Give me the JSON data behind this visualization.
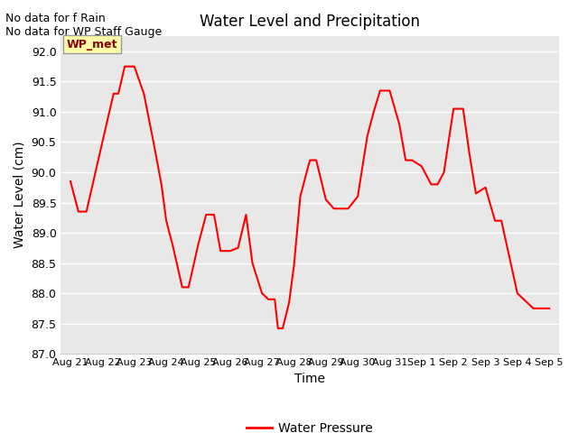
{
  "title": "Water Level and Precipitation",
  "xlabel": "Time",
  "ylabel": "Water Level (cm)",
  "legend_label": "Water Pressure",
  "line_color": "red",
  "background_color": "#e8e8e8",
  "fig_background": "#ffffff",
  "ylim": [
    87.0,
    92.25
  ],
  "yticks": [
    87.0,
    87.5,
    88.0,
    88.5,
    89.0,
    89.5,
    90.0,
    90.5,
    91.0,
    91.5,
    92.0
  ],
  "xtick_labels": [
    "Aug 21",
    "Aug 22",
    "Aug 23",
    "Aug 24",
    "Aug 25",
    "Aug 26",
    "Aug 27",
    "Aug 28",
    "Aug 29",
    "Aug 30",
    "Aug 31",
    "Sep 1",
    "Sep 2",
    "Sep 3",
    "Sep 4",
    "Sep 5"
  ],
  "annotation_text": "No data for f Rain\nNo data for WP Staff Gauge",
  "wp_met_label": "WP_met",
  "x": [
    0,
    0.25,
    0.5,
    1.0,
    1.35,
    1.5,
    1.7,
    2.0,
    2.3,
    2.6,
    2.85,
    3.0,
    3.2,
    3.5,
    3.7,
    4.0,
    4.25,
    4.5,
    4.7,
    5.0,
    5.25,
    5.5,
    5.7,
    6.0,
    6.2,
    6.4,
    6.5,
    6.65,
    6.85,
    7.0,
    7.2,
    7.5,
    7.7,
    8.0,
    8.25,
    8.5,
    8.7,
    9.0,
    9.3,
    9.5,
    9.7,
    10.0,
    10.3,
    10.5,
    10.7,
    11.0,
    11.3,
    11.5,
    11.7,
    12.0,
    12.3,
    12.5,
    12.7,
    13.0,
    13.3,
    13.5,
    14.0,
    14.3,
    14.5,
    15.0
  ],
  "y": [
    89.85,
    89.35,
    89.35,
    90.5,
    91.3,
    91.3,
    91.75,
    91.75,
    91.3,
    90.5,
    89.8,
    89.2,
    88.8,
    88.1,
    88.1,
    88.8,
    89.3,
    89.3,
    88.7,
    88.7,
    88.75,
    89.3,
    88.5,
    88.0,
    87.9,
    87.9,
    87.42,
    87.42,
    87.85,
    88.45,
    89.6,
    90.2,
    90.2,
    89.55,
    89.4,
    89.4,
    89.4,
    89.6,
    90.6,
    91.0,
    91.35,
    91.35,
    90.8,
    90.2,
    90.2,
    90.1,
    89.8,
    89.8,
    90.0,
    91.05,
    91.05,
    90.3,
    89.65,
    89.75,
    89.2,
    89.2,
    88.0,
    87.85,
    87.75,
    87.75
  ]
}
